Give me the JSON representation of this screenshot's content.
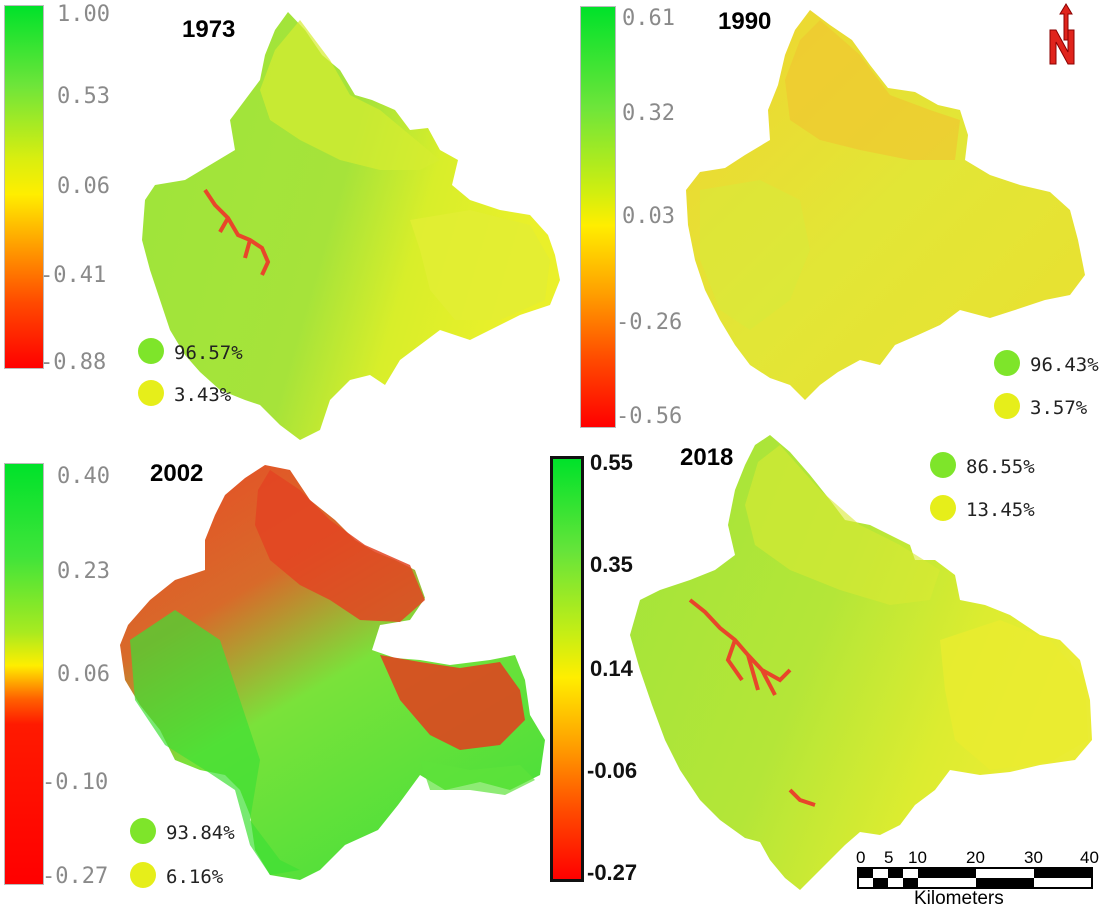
{
  "panels": [
    {
      "year": "1973",
      "ticks": [
        "1.00",
        "0.53",
        "0.06",
        "-0.41",
        "-0.88"
      ],
      "legend": [
        {
          "label": "96.57%",
          "color": "#7ee52a"
        },
        {
          "label": "3.43%",
          "color": "#e6ee1a"
        }
      ]
    },
    {
      "year": "1990",
      "ticks": [
        "0.61",
        "0.32",
        "0.03",
        "-0.26",
        "-0.56"
      ],
      "legend": [
        {
          "label": "96.43%",
          "color": "#7ee52a"
        },
        {
          "label": "3.57%",
          "color": "#e6ee1a"
        }
      ]
    },
    {
      "year": "2002",
      "ticks": [
        "0.40",
        "0.23",
        "0.06",
        "-0.10",
        "-0.27"
      ],
      "legend": [
        {
          "label": "93.84%",
          "color": "#7ee52a"
        },
        {
          "label": "6.16%",
          "color": "#e6ee1a"
        }
      ]
    },
    {
      "year": "2018",
      "ticks": [
        "0.55",
        "0.35",
        "0.14",
        "-0.06",
        "-0.27"
      ],
      "legend": [
        {
          "label": "86.55%",
          "color": "#7ee52a"
        },
        {
          "label": "13.45%",
          "color": "#e6ee1a"
        }
      ]
    }
  ],
  "scale_bar": {
    "ticks": [
      "0",
      "5",
      "10",
      "20",
      "30",
      "40"
    ],
    "unit": "Kilometers"
  },
  "north_arrow": {
    "label": "N",
    "icon": "north-arrow-icon",
    "color": "#e0241c"
  }
}
